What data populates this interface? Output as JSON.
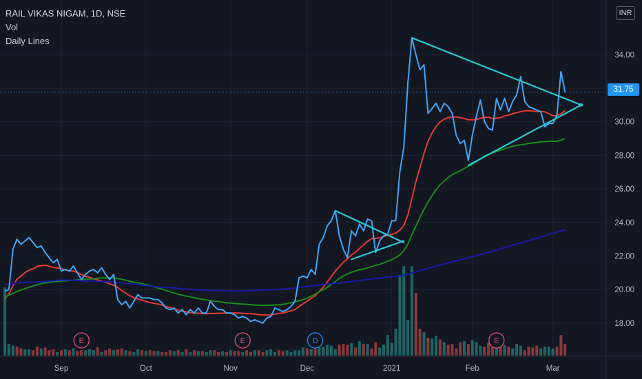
{
  "legend": {
    "symbol": "RAIL VIKAS NIGAM, 1D, NSE",
    "volume": "Vol",
    "indicator": "Daily Lines"
  },
  "currency": "INR",
  "last_price": "31.75",
  "chart_data": {
    "type": "line",
    "ylim": [
      16.6,
      36.6
    ],
    "y_ticks": [
      "18.00",
      "20.00",
      "22.00",
      "24.00",
      "26.00",
      "28.00",
      "30.00",
      "32.00",
      "34.00"
    ],
    "x_labels": [
      {
        "label": "Sep",
        "i": 14
      },
      {
        "label": "Oct",
        "i": 35
      },
      {
        "label": "Nov",
        "i": 56
      },
      {
        "label": "Dec",
        "i": 75
      },
      {
        "label": "2021",
        "i": 96
      },
      {
        "label": "Feb",
        "i": 116
      },
      {
        "label": "Mar",
        "i": 136
      }
    ],
    "price": [
      19.9,
      20.0,
      22.4,
      23.0,
      22.7,
      22.9,
      23.1,
      22.8,
      22.5,
      22.6,
      22.2,
      21.9,
      21.6,
      21.8,
      21.1,
      21.2,
      21.1,
      21.4,
      21.0,
      20.6,
      20.9,
      21.1,
      21.2,
      21.0,
      21.3,
      20.9,
      20.6,
      20.9,
      19.4,
      19.1,
      19.3,
      18.9,
      19.3,
      19.7,
      19.5,
      19.5,
      19.5,
      19.4,
      19.4,
      19.2,
      18.9,
      18.8,
      18.9,
      18.6,
      18.8,
      18.5,
      18.8,
      18.6,
      18.9,
      18.6,
      18.6,
      19.3,
      19.0,
      18.8,
      18.8,
      18.6,
      18.6,
      18.5,
      18.3,
      18.4,
      18.3,
      18.1,
      18.2,
      18.1,
      18.0,
      18.3,
      18.4,
      18.9,
      18.8,
      18.7,
      18.8,
      19.0,
      19.3,
      20.7,
      20.8,
      20.7,
      21.2,
      20.9,
      22.7,
      23.1,
      23.8,
      24.1,
      24.7,
      23.2,
      22.4,
      21.9,
      23.5,
      23.2,
      23.9,
      23.5,
      24.2,
      24.1,
      22.2,
      22.9,
      23.2,
      23.3,
      24.1,
      24.1,
      27.0,
      28.5,
      32.3,
      35.0,
      34.0,
      33.1,
      33.4,
      30.5,
      30.8,
      31.1,
      30.6,
      31.1,
      30.9,
      30.5,
      29.2,
      28.7,
      28.9,
      27.7,
      29.2,
      30.3,
      31.3,
      30.0,
      29.6,
      29.5,
      31.4,
      30.7,
      31.4,
      30.6,
      31.2,
      31.6,
      32.7,
      31.2,
      30.9,
      30.8,
      30.7,
      30.6,
      29.7,
      29.9,
      29.9,
      30.4,
      33.0,
      31.75
    ],
    "series": [
      {
        "color": "#e53935",
        "values": [
          19.45,
          19.74,
          20.21,
          20.62,
          20.8,
          21.02,
          21.16,
          21.24,
          21.38,
          21.42,
          21.45,
          21.39,
          21.32,
          21.29,
          21.25,
          21.18,
          21.12,
          21.1,
          21.02,
          20.9,
          20.79,
          20.73,
          20.64,
          20.58,
          20.51,
          20.44,
          20.34,
          20.26,
          20.13,
          19.93,
          19.79,
          19.64,
          19.51,
          19.43,
          19.37,
          19.3,
          19.23,
          19.18,
          19.14,
          19.08,
          18.99,
          18.92,
          18.86,
          18.78,
          18.72,
          18.67,
          18.63,
          18.6,
          18.59,
          18.57,
          18.56,
          18.58,
          18.57,
          18.59,
          18.59,
          18.59,
          18.61,
          18.61,
          18.6,
          18.58,
          18.57,
          18.56,
          18.54,
          18.51,
          18.49,
          18.48,
          18.49,
          18.54,
          18.58,
          18.61,
          18.67,
          18.73,
          18.82,
          18.98,
          19.15,
          19.31,
          19.48,
          19.64,
          19.88,
          20.15,
          20.45,
          20.78,
          21.1,
          21.37,
          21.62,
          21.83,
          22.06,
          22.23,
          22.45,
          22.66,
          22.87,
          23.03,
          23.06,
          23.09,
          23.16,
          23.23,
          23.28,
          23.37,
          23.54,
          23.83,
          24.44,
          25.41,
          26.44,
          27.26,
          28.11,
          28.84,
          29.34,
          29.72,
          29.99,
          30.15,
          30.25,
          30.28,
          30.29,
          30.25,
          30.19,
          30.12,
          30.12,
          30.12,
          30.21,
          30.27,
          30.26,
          30.2,
          30.22,
          30.24,
          30.35,
          30.4,
          30.48,
          30.54,
          30.61,
          30.65,
          30.66,
          30.64,
          30.6,
          30.62,
          30.59,
          30.48,
          30.37,
          30.36,
          30.48,
          30.67
        ]
      },
      {
        "color": "#1b8a1b",
        "values": [
          19.55,
          19.67,
          19.77,
          19.89,
          19.98,
          20.06,
          20.14,
          20.21,
          20.29,
          20.35,
          20.4,
          20.43,
          20.46,
          20.48,
          20.51,
          20.52,
          20.54,
          20.56,
          20.59,
          20.59,
          20.61,
          20.63,
          20.64,
          20.67,
          20.7,
          20.7,
          20.69,
          20.7,
          20.66,
          20.61,
          20.56,
          20.5,
          20.45,
          20.4,
          20.34,
          20.3,
          20.23,
          20.16,
          20.09,
          20.02,
          19.95,
          19.87,
          19.8,
          19.72,
          19.66,
          19.61,
          19.57,
          19.52,
          19.46,
          19.42,
          19.38,
          19.34,
          19.31,
          19.29,
          19.25,
          19.22,
          19.19,
          19.17,
          19.15,
          19.13,
          19.12,
          19.1,
          19.08,
          19.07,
          19.06,
          19.06,
          19.07,
          19.08,
          19.09,
          19.12,
          19.16,
          19.21,
          19.27,
          19.33,
          19.41,
          19.5,
          19.6,
          19.73,
          19.86,
          20.0,
          20.13,
          20.29,
          20.48,
          20.66,
          20.81,
          20.93,
          21.03,
          21.11,
          21.18,
          21.23,
          21.3,
          21.37,
          21.44,
          21.5,
          21.59,
          21.69,
          21.78,
          21.9,
          22.07,
          22.32,
          22.71,
          23.27,
          23.79,
          24.29,
          24.77,
          25.22,
          25.6,
          25.95,
          26.24,
          26.47,
          26.68,
          26.84,
          26.97,
          27.08,
          27.21,
          27.35,
          27.48,
          27.62,
          27.79,
          27.95,
          28.07,
          28.14,
          28.23,
          28.3,
          28.39,
          28.46,
          28.54,
          28.59,
          28.63,
          28.66,
          28.71,
          28.74,
          28.77,
          28.8,
          28.82,
          28.84,
          28.84,
          28.84,
          28.91,
          29.0
        ]
      },
      {
        "color": "#1a1aa6",
        "values": [
          20.3,
          20.32,
          20.36,
          20.4,
          20.41,
          20.43,
          20.44,
          20.44,
          20.45,
          20.46,
          20.48,
          20.51,
          20.52,
          20.55,
          20.56,
          20.57,
          20.56,
          20.55,
          20.56,
          20.53,
          20.5,
          20.51,
          20.5,
          20.49,
          20.48,
          20.47,
          20.46,
          20.45,
          20.42,
          20.39,
          20.36,
          20.34,
          20.33,
          20.3,
          20.27,
          20.24,
          20.21,
          20.18,
          20.15,
          20.13,
          20.13,
          20.11,
          20.09,
          20.07,
          20.05,
          20.03,
          20.02,
          20.0,
          19.98,
          19.97,
          19.96,
          19.94,
          19.94,
          19.93,
          19.93,
          19.93,
          19.92,
          19.91,
          19.91,
          19.92,
          19.93,
          19.94,
          19.95,
          19.96,
          19.97,
          19.98,
          19.99,
          20.0,
          20.01,
          20.03,
          20.05,
          20.07,
          20.09,
          20.13,
          20.16,
          20.19,
          20.22,
          20.24,
          20.27,
          20.3,
          20.32,
          20.35,
          20.37,
          20.39,
          20.42,
          20.45,
          20.48,
          20.51,
          20.54,
          20.57,
          20.6,
          20.63,
          20.66,
          20.68,
          20.71,
          20.74,
          20.76,
          20.79,
          20.81,
          20.85,
          20.9,
          20.98,
          21.05,
          21.13,
          21.2,
          21.27,
          21.33,
          21.4,
          21.46,
          21.52,
          21.59,
          21.65,
          21.71,
          21.78,
          21.84,
          21.9,
          21.96,
          22.03,
          22.09,
          22.16,
          22.22,
          22.29,
          22.36,
          22.43,
          22.5,
          22.57,
          22.64,
          22.71,
          22.78,
          22.85,
          22.92,
          22.99,
          23.06,
          23.13,
          23.2,
          23.28,
          23.35,
          23.42,
          23.49,
          23.57
        ]
      }
    ],
    "trendlines": [
      {
        "color": "#28c8d0",
        "points": [
          [
            82,
            24.7
          ],
          [
            99,
            22.8
          ]
        ]
      },
      {
        "color": "#28c8d0",
        "points": [
          [
            86,
            21.8
          ],
          [
            99,
            22.9
          ]
        ]
      },
      {
        "color": "#28c8d0",
        "points": [
          [
            101,
            35.0
          ],
          [
            143,
            31.0
          ]
        ]
      },
      {
        "color": "#28c8d0",
        "points": [
          [
            115,
            27.4
          ],
          [
            143,
            31.0
          ]
        ]
      }
    ],
    "volume": [
      0.76,
      0.13,
      0.11,
      0.1,
      0.08,
      0.07,
      0.07,
      0.06,
      0.1,
      0.08,
      0.09,
      0.06,
      0.07,
      0.04,
      0.06,
      0.07,
      0.06,
      0.08,
      0.05,
      0.06,
      0.06,
      0.07,
      0.06,
      0.09,
      0.04,
      0.06,
      0.08,
      0.06,
      0.07,
      0.08,
      0.06,
      0.05,
      0.04,
      0.07,
      0.06,
      0.05,
      0.06,
      0.05,
      0.05,
      0.04,
      0.04,
      0.06,
      0.05,
      0.06,
      0.04,
      0.07,
      0.04,
      0.06,
      0.05,
      0.05,
      0.04,
      0.06,
      0.06,
      0.04,
      0.05,
      0.04,
      0.06,
      0.05,
      0.05,
      0.04,
      0.06,
      0.04,
      0.06,
      0.06,
      0.04,
      0.06,
      0.07,
      0.04,
      0.06,
      0.05,
      0.06,
      0.04,
      0.06,
      0.06,
      0.09,
      0.08,
      0.07,
      0.08,
      0.09,
      0.1,
      0.12,
      0.11,
      0.07,
      0.12,
      0.13,
      0.12,
      0.14,
      0.09,
      0.16,
      0.13,
      0.13,
      0.08,
      0.15,
      0.09,
      0.12,
      0.23,
      0.14,
      0.3,
      0.9,
      1.0,
      0.4,
      1.0,
      0.7,
      0.3,
      0.26,
      0.2,
      0.19,
      0.22,
      0.18,
      0.15,
      0.12,
      0.13,
      0.08,
      0.15,
      0.16,
      0.13,
      0.17,
      0.15,
      0.11,
      0.1,
      0.14,
      0.12,
      0.15,
      0.13,
      0.12,
      0.1,
      0.08,
      0.13,
      0.11,
      0.06,
      0.1,
      0.09,
      0.11,
      0.08,
      0.1,
      0.1,
      0.08,
      0.1,
      0.23,
      0.13
    ],
    "volume_up": [
      1,
      1,
      1,
      0,
      0,
      1,
      1,
      0,
      0,
      1,
      0,
      0,
      0,
      1,
      0,
      1,
      0,
      1,
      0,
      0,
      1,
      1,
      1,
      0,
      1,
      0,
      0,
      1,
      0,
      0,
      1,
      0,
      1,
      1,
      0,
      1,
      0,
      0,
      1,
      0,
      0,
      0,
      1,
      0,
      1,
      0,
      1,
      0,
      1,
      0,
      1,
      1,
      0,
      0,
      1,
      0,
      1,
      0,
      0,
      1,
      0,
      0,
      1,
      0,
      0,
      1,
      1,
      1,
      0,
      0,
      1,
      1,
      1,
      1,
      1,
      0,
      1,
      0,
      1,
      1,
      1,
      1,
      1,
      0,
      0,
      0,
      1,
      0,
      1,
      0,
      1,
      0,
      0,
      1,
      1,
      1,
      1,
      1,
      1,
      1,
      1,
      1,
      0,
      0,
      1,
      0,
      1,
      1,
      0,
      1,
      0,
      0,
      0,
      0,
      1,
      0,
      1,
      1,
      1,
      0,
      0,
      0,
      1,
      0,
      1,
      0,
      1,
      1,
      1,
      0,
      0,
      0,
      0,
      1,
      1,
      1,
      1,
      0
    ],
    "events": [
      {
        "label": "E",
        "i": 19,
        "color": "#e0526a"
      },
      {
        "label": "E",
        "i": 59,
        "color": "#e0526a"
      },
      {
        "label": "D",
        "i": 77,
        "color": "#2b8ce6"
      },
      {
        "label": "E",
        "i": 122,
        "color": "#e0526a"
      }
    ]
  }
}
